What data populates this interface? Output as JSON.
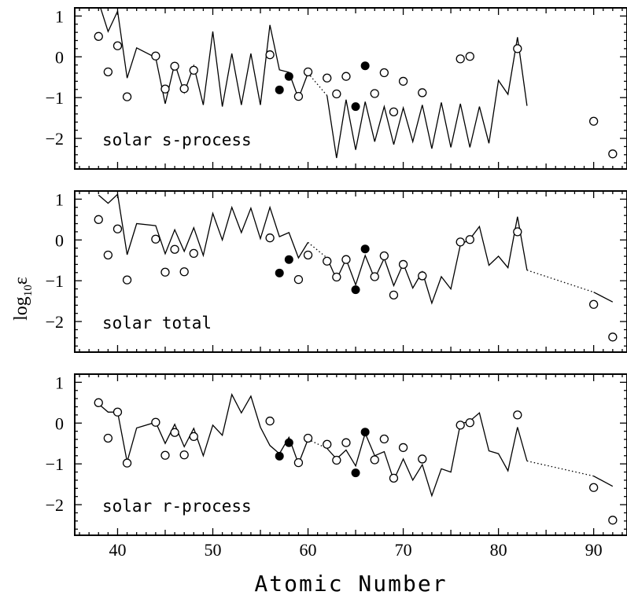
{
  "chart_data": {
    "type": "scatter",
    "xlabel": "Atomic Number",
    "ylabel": "log",
    "ylabel_sub": "10",
    "ylabel_sym": "ε",
    "xlim": [
      35.5,
      93.5
    ],
    "xticks": [
      40,
      50,
      60,
      70,
      80,
      90
    ],
    "ylim": [
      -2.75,
      1.2
    ],
    "yticks": [
      1,
      0,
      -1,
      -2
    ],
    "ytick_labels": [
      "1",
      "0",
      "−1",
      "−2"
    ],
    "observed": {
      "open": [
        [
          38,
          0.5
        ],
        [
          39,
          -0.37
        ],
        [
          40,
          0.27
        ],
        [
          41,
          -0.98
        ],
        [
          44,
          0.02
        ],
        [
          45,
          -0.79
        ],
        [
          46,
          -0.23
        ],
        [
          47,
          -0.78
        ],
        [
          48,
          -0.33
        ],
        [
          56,
          0.05
        ],
        [
          59,
          -0.97
        ],
        [
          60,
          -0.37
        ],
        [
          62,
          -0.52
        ],
        [
          63,
          -0.91
        ],
        [
          64,
          -0.48
        ],
        [
          67,
          -0.9
        ],
        [
          68,
          -0.39
        ],
        [
          69,
          -1.35
        ],
        [
          70,
          -0.6
        ],
        [
          72,
          -0.88
        ],
        [
          76,
          -0.05
        ],
        [
          77,
          0.01
        ],
        [
          82,
          0.2
        ],
        [
          90,
          -1.58
        ],
        [
          92,
          -2.38
        ]
      ],
      "filled": [
        [
          57,
          -0.81
        ],
        [
          58,
          -0.48
        ],
        [
          65,
          -1.22
        ],
        [
          66,
          -0.22
        ]
      ]
    },
    "panels": [
      {
        "label": "solar s-process",
        "line": [
          [
            [
              38,
              1.35
            ],
            [
              39,
              0.62
            ],
            [
              40,
              1.12
            ],
            [
              41,
              -0.52
            ],
            [
              42,
              0.22
            ],
            [
              44,
              -0.02
            ],
            [
              45,
              -1.15
            ],
            [
              46,
              -0.16
            ],
            [
              47,
              -0.88
            ],
            [
              48,
              -0.22
            ],
            [
              49,
              -1.18
            ],
            [
              50,
              0.62
            ],
            [
              51,
              -1.22
            ],
            [
              52,
              0.08
            ],
            [
              53,
              -1.18
            ],
            [
              54,
              0.08
            ],
            [
              55,
              -1.18
            ],
            [
              56,
              0.78
            ],
            [
              57,
              -0.32
            ],
            [
              58,
              -0.38
            ],
            [
              59,
              -1.02
            ],
            [
              60,
              -0.4
            ]
          ],
          [
            [
              62,
              -0.95
            ],
            [
              63,
              -2.48
            ],
            [
              64,
              -1.05
            ],
            [
              65,
              -2.28
            ],
            [
              66,
              -1.1
            ],
            [
              67,
              -2.08
            ],
            [
              68,
              -1.22
            ],
            [
              69,
              -2.15
            ],
            [
              70,
              -1.25
            ],
            [
              71,
              -2.08
            ],
            [
              72,
              -1.18
            ],
            [
              73,
              -2.25
            ],
            [
              74,
              -1.12
            ],
            [
              75,
              -2.22
            ],
            [
              76,
              -1.15
            ],
            [
              77,
              -2.22
            ],
            [
              78,
              -1.22
            ],
            [
              79,
              -2.12
            ],
            [
              80,
              -0.58
            ],
            [
              81,
              -0.92
            ],
            [
              82,
              0.48
            ],
            [
              83,
              -1.2
            ]
          ]
        ],
        "dotted": [
          [
            [
              60,
              -0.4
            ],
            [
              62,
              -0.95
            ]
          ]
        ]
      },
      {
        "label": "solar total",
        "line": [
          [
            [
              38,
              1.1
            ],
            [
              39,
              0.9
            ],
            [
              40,
              1.12
            ],
            [
              41,
              -0.36
            ],
            [
              42,
              0.4
            ],
            [
              44,
              0.35
            ],
            [
              45,
              -0.34
            ],
            [
              46,
              0.25
            ],
            [
              47,
              -0.28
            ],
            [
              48,
              0.3
            ],
            [
              49,
              -0.38
            ],
            [
              50,
              0.65
            ],
            [
              51,
              0.0
            ],
            [
              52,
              0.8
            ],
            [
              53,
              0.18
            ],
            [
              54,
              0.78
            ],
            [
              55,
              0.03
            ],
            [
              56,
              0.8
            ],
            [
              57,
              0.08
            ],
            [
              58,
              0.18
            ],
            [
              59,
              -0.44
            ],
            [
              60,
              -0.06
            ]
          ],
          [
            [
              62,
              -0.44
            ],
            [
              63,
              -0.97
            ],
            [
              64,
              -0.47
            ],
            [
              65,
              -1.1
            ],
            [
              66,
              -0.38
            ],
            [
              67,
              -0.95
            ],
            [
              68,
              -0.45
            ],
            [
              69,
              -1.12
            ],
            [
              70,
              -0.58
            ],
            [
              71,
              -1.18
            ],
            [
              72,
              -0.78
            ],
            [
              73,
              -1.55
            ],
            [
              74,
              -0.9
            ],
            [
              75,
              -1.2
            ],
            [
              76,
              -0.12
            ],
            [
              77,
              0.02
            ],
            [
              78,
              0.33
            ],
            [
              79,
              -0.62
            ],
            [
              80,
              -0.4
            ],
            [
              81,
              -0.68
            ],
            [
              82,
              0.57
            ],
            [
              83,
              -0.74
            ]
          ]
        ],
        "dotted": [
          [
            [
              60,
              -0.06
            ],
            [
              62,
              -0.44
            ]
          ],
          [
            [
              83,
              -0.74
            ],
            [
              90,
              -1.28
            ]
          ]
        ],
        "tail": [
          [
            90,
            -1.28
          ],
          [
            92,
            -1.52
          ]
        ]
      },
      {
        "label": "solar r-process",
        "line": [
          [
            [
              38,
              0.47
            ],
            [
              39,
              0.27
            ],
            [
              40,
              0.27
            ],
            [
              41,
              -0.95
            ],
            [
              42,
              -0.12
            ],
            [
              44,
              0.02
            ],
            [
              45,
              -0.5
            ],
            [
              46,
              -0.03
            ],
            [
              47,
              -0.58
            ],
            [
              48,
              -0.13
            ],
            [
              49,
              -0.8
            ],
            [
              50,
              -0.05
            ],
            [
              51,
              -0.3
            ],
            [
              52,
              0.7
            ],
            [
              53,
              0.25
            ],
            [
              54,
              0.66
            ],
            [
              55,
              -0.1
            ],
            [
              56,
              -0.55
            ],
            [
              57,
              -0.75
            ],
            [
              58,
              -0.35
            ],
            [
              59,
              -1.0
            ],
            [
              60,
              -0.4
            ]
          ],
          [
            [
              62,
              -0.62
            ],
            [
              63,
              -0.88
            ],
            [
              64,
              -0.66
            ],
            [
              65,
              -1.05
            ],
            [
              66,
              -0.25
            ],
            [
              67,
              -0.8
            ],
            [
              68,
              -0.7
            ],
            [
              69,
              -1.4
            ],
            [
              70,
              -0.88
            ],
            [
              71,
              -1.4
            ],
            [
              72,
              -1.02
            ],
            [
              73,
              -1.78
            ],
            [
              74,
              -1.12
            ],
            [
              75,
              -1.2
            ],
            [
              76,
              -0.02
            ],
            [
              77,
              0.05
            ],
            [
              78,
              0.25
            ],
            [
              79,
              -0.68
            ],
            [
              80,
              -0.75
            ],
            [
              81,
              -1.17
            ],
            [
              82,
              -0.1
            ],
            [
              83,
              -0.93
            ]
          ]
        ],
        "dotted": [
          [
            [
              60,
              -0.4
            ],
            [
              62,
              -0.62
            ]
          ],
          [
            [
              83,
              -0.93
            ],
            [
              90,
              -1.3
            ]
          ]
        ],
        "tail": [
          [
            90,
            -1.3
          ],
          [
            92,
            -1.55
          ]
        ]
      }
    ]
  }
}
